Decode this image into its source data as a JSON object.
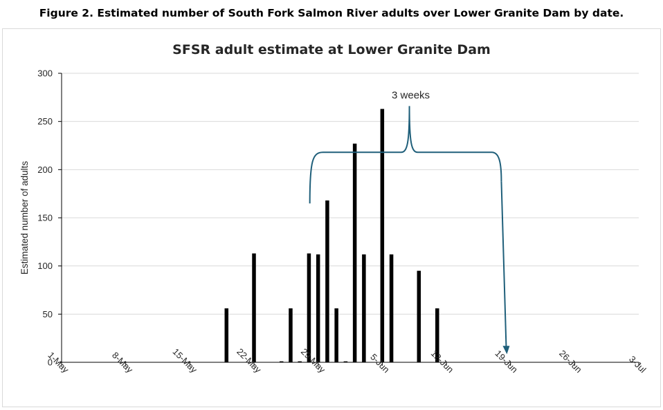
{
  "figure_caption": "Figure 2. Estimated number of South Fork Salmon River adults over Lower Granite Dam by date.",
  "chart_data": {
    "type": "bar",
    "title": "SFSR adult estimate at Lower Granite Dam",
    "xlabel": "",
    "ylabel": "Estimated number of adults",
    "ylim": [
      0,
      300
    ],
    "yticks": [
      0,
      50,
      100,
      150,
      200,
      250,
      300
    ],
    "grid": true,
    "x_tick_labels": [
      "1-May",
      "8-May",
      "15-May",
      "22-May",
      "29-May",
      "5-Jun",
      "12-Jun",
      "19-Jun",
      "26-Jun",
      "3-Jul"
    ],
    "x_range": [
      "2024-05-01",
      "2024-07-03"
    ],
    "points": [
      {
        "date": "2024-05-19",
        "value": 56
      },
      {
        "date": "2024-05-22",
        "value": 113
      },
      {
        "date": "2024-05-25",
        "value": 1
      },
      {
        "date": "2024-05-26",
        "value": 56
      },
      {
        "date": "2024-05-27",
        "value": 1
      },
      {
        "date": "2024-05-28",
        "value": 113
      },
      {
        "date": "2024-05-29",
        "value": 112
      },
      {
        "date": "2024-05-30",
        "value": 168
      },
      {
        "date": "2024-05-31",
        "value": 56
      },
      {
        "date": "2024-06-01",
        "value": 1
      },
      {
        "date": "2024-06-02",
        "value": 227
      },
      {
        "date": "2024-06-03",
        "value": 112
      },
      {
        "date": "2024-06-05",
        "value": 263
      },
      {
        "date": "2024-06-06",
        "value": 112
      },
      {
        "date": "2024-06-09",
        "value": 95
      },
      {
        "date": "2024-06-11",
        "value": 56
      }
    ],
    "annotation": {
      "text": "3 weeks",
      "color": "#1f5f7a",
      "bracket_start": "2024-05-29",
      "bracket_end": "2024-06-18",
      "bracket_level": 218,
      "arrow_to_date": "2024-06-18",
      "arrow_to_value": 12
    },
    "colors": {
      "bar": "#000000",
      "grid": "#d9d9d9",
      "axis": "#000000"
    }
  }
}
